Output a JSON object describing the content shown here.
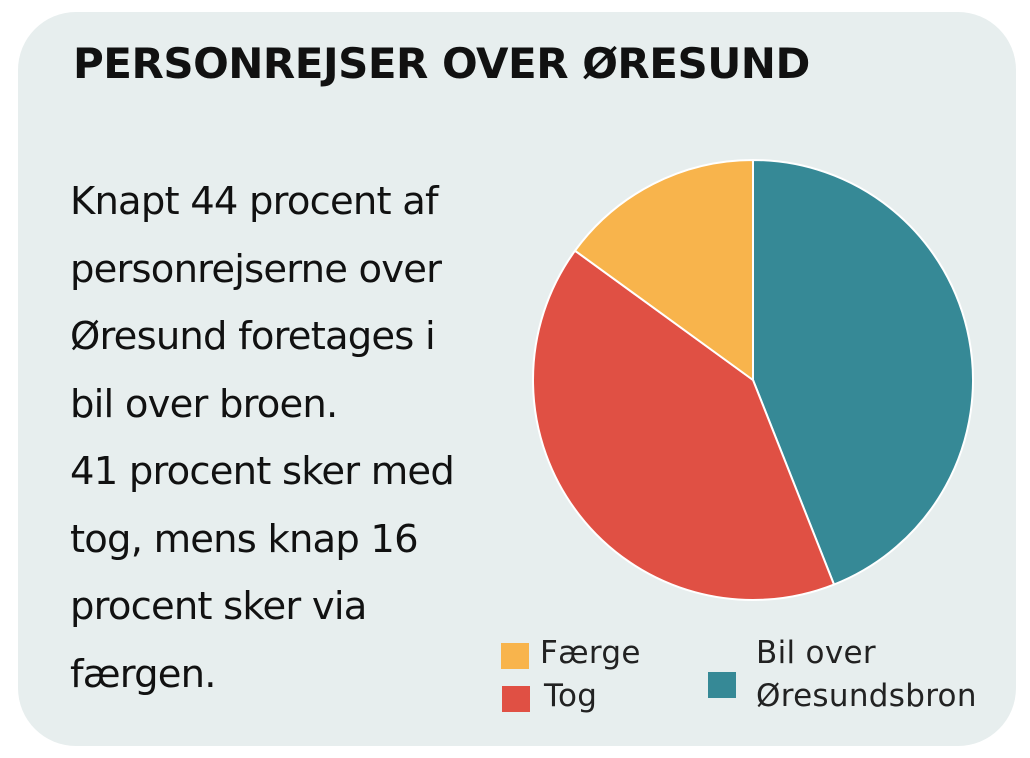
{
  "title": "PERSONREJSER OVER ØRESUND",
  "description": {
    "lines": [
      "Knapt 44 procent af",
      "personrejserne over",
      "Øresund foretages i",
      "bil over broen.",
      "41 procent sker med",
      "tog, mens knap 16",
      "procent sker via",
      "færgen."
    ]
  },
  "chart_data": {
    "type": "pie",
    "title": "PERSONREJSER OVER ØRESUND",
    "slices": [
      {
        "label": "Bil over Øresundsbron",
        "value": 44,
        "color": "#368996"
      },
      {
        "label": "Tog",
        "value": 41,
        "color": "#e05044"
      },
      {
        "label": "Færge",
        "value": 15,
        "color": "#f8b44c"
      }
    ],
    "legend": {
      "items": [
        {
          "label": "Færge",
          "color": "#f8b44c"
        },
        {
          "label": "Tog",
          "color": "#e05044"
        },
        {
          "label_lines": [
            "Bil over",
            "Øresundsbron"
          ],
          "color": "#368996"
        }
      ]
    }
  }
}
